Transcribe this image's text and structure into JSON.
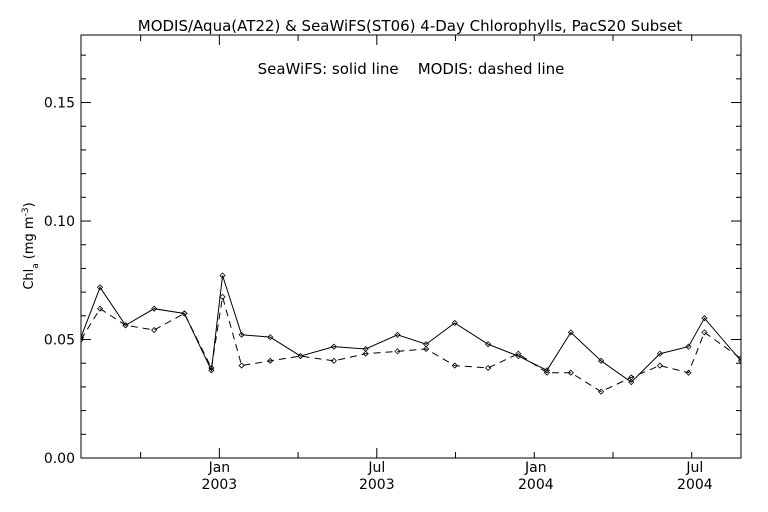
{
  "chart_data": {
    "type": "line",
    "title": "MODIS/Aqua(AT22) & SeaWiFS(ST06) 4-Day Chlorophylls, PacS20 Subset",
    "legend_text": "SeaWiFS: solid line    MODIS: dashed line",
    "ylabel": "Chl_a (mg m^-3)",
    "ylim": [
      0,
      0.1785
    ],
    "yticks": [
      "0.00",
      "0.05",
      "0.10",
      "0.15"
    ],
    "xlim": [
      0,
      41.5
    ],
    "xticks": [
      {
        "pos": 8.7,
        "month": "Jan",
        "year": "2003"
      },
      {
        "pos": 18.6,
        "month": "Jul",
        "year": "2003"
      },
      {
        "pos": 28.6,
        "month": "Jan",
        "year": "2004"
      },
      {
        "pos": 38.6,
        "month": "Jul",
        "year": "2004"
      }
    ],
    "series": [
      {
        "name": "SeaWiFS",
        "style": "solid",
        "x": [
          0,
          1.2,
          2.8,
          4.6,
          6.5,
          8.2,
          8.9,
          10.1,
          11.9,
          13.8,
          15.9,
          17.9,
          19.9,
          21.7,
          23.5,
          25.6,
          27.5,
          29.3,
          30.8,
          32.7,
          34.6,
          36.4,
          38.2,
          39.2,
          41.5
        ],
        "y": [
          0.051,
          0.072,
          0.056,
          0.063,
          0.061,
          0.037,
          0.077,
          0.052,
          0.051,
          0.043,
          0.047,
          0.046,
          0.052,
          0.048,
          0.057,
          0.048,
          0.043,
          0.037,
          0.053,
          0.041,
          0.032,
          0.044,
          0.047,
          0.059,
          0.041
        ]
      },
      {
        "name": "MODIS",
        "style": "dashed",
        "x": [
          0,
          1.2,
          2.8,
          4.6,
          6.5,
          8.2,
          8.9,
          10.1,
          11.9,
          13.8,
          15.9,
          17.9,
          19.9,
          21.7,
          23.5,
          25.6,
          27.5,
          29.3,
          30.8,
          32.7,
          34.6,
          36.4,
          38.2,
          39.2,
          41.5
        ],
        "y": [
          0.05,
          0.063,
          0.056,
          0.054,
          0.061,
          0.038,
          0.068,
          0.039,
          0.041,
          0.043,
          0.041,
          0.044,
          0.045,
          0.046,
          0.039,
          0.038,
          0.044,
          0.036,
          0.036,
          0.028,
          0.034,
          0.039,
          0.036,
          0.053,
          0.042
        ]
      }
    ],
    "grid": false
  }
}
